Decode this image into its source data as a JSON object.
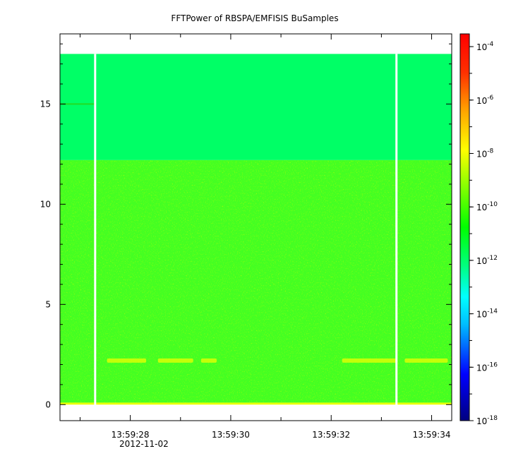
{
  "chart_data": {
    "type": "heatmap",
    "title": "FFTPower of RBSPA/EMFISIS  BuSamples",
    "xlabel": "",
    "ylabel": "",
    "xlim": [
      "13:59:26.6",
      "13:59:34.4"
    ],
    "ylim": [
      -0.8,
      18.5
    ],
    "x_ticks": [
      "13:59:28",
      "13:59:30",
      "13:59:32",
      "13:59:34"
    ],
    "x_date_label": "2012-11-02",
    "y_ticks": [
      "0",
      "5",
      "10",
      "15"
    ],
    "y_tick_values": [
      0,
      5,
      10,
      15
    ],
    "colorbar": {
      "scale": "log",
      "tick_mantissa": "10",
      "tick_exponents": [
        "-4",
        "-6",
        "-8",
        "-10",
        "-12",
        "-14",
        "-16",
        "-18"
      ],
      "range": [
        "1e-18",
        "3e-4"
      ],
      "colormap": [
        "#00007f",
        "#0000ff",
        "#00bfff",
        "#00ffff",
        "#00ff80",
        "#00ff00",
        "#80ff00",
        "#ffff00",
        "#ffa500",
        "#ff3000",
        "#ff0000"
      ]
    },
    "data_gaps_x": [
      "13:59:27.3",
      "13:59:33.3"
    ],
    "bands": [
      {
        "from": 12.2,
        "to": 17.5,
        "level": "1e-12",
        "color": "#00ff66"
      },
      {
        "from": 0.1,
        "to": 12.2,
        "level": "1e-10",
        "color": "#44ff22"
      },
      {
        "from": 0.0,
        "to": 0.1,
        "level": "1e-8",
        "color": "#eaff00"
      }
    ],
    "features": [
      {
        "type": "line",
        "y": 15.0,
        "x_from": "13:59:26.6",
        "x_to": "13:59:27.3",
        "level": "1e-10"
      },
      {
        "type": "enhancement",
        "y": 2.2,
        "level": "1e-9",
        "color": "#eeff00"
      }
    ]
  }
}
